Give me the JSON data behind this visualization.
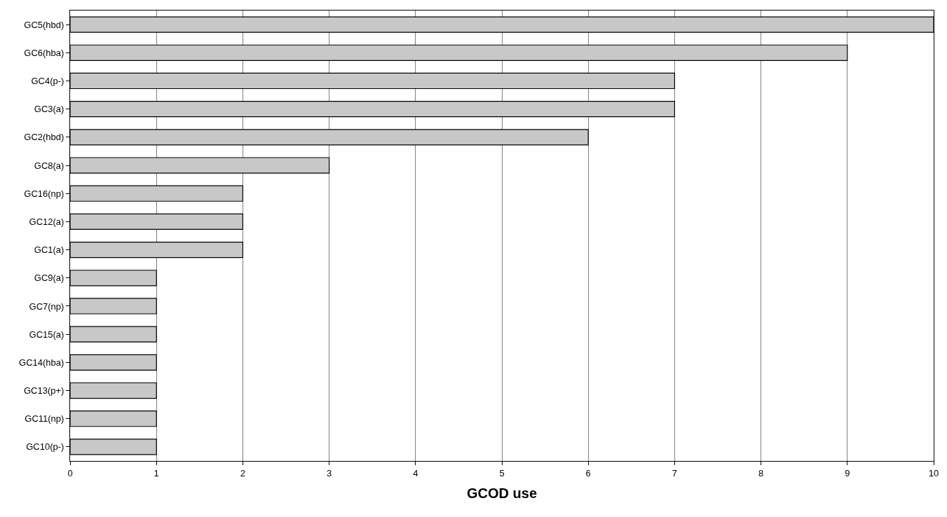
{
  "chart_data": {
    "type": "bar",
    "orientation": "horizontal",
    "xlabel": "GCOD use",
    "categories": [
      "GC5(hbd)",
      "GC6(hba)",
      "GC4(p-)",
      "GC3(a)",
      "GC2(hbd)",
      "GC8(a)",
      "GC16(np)",
      "GC12(a)",
      "GC1(a)",
      "GC9(a)",
      "GC7(np)",
      "GC15(a)",
      "GC14(hba)",
      "GC13(p+)",
      "GC11(np)",
      "GC10(p-)"
    ],
    "values": [
      10,
      9,
      7,
      7,
      6,
      3,
      2,
      2,
      2,
      1,
      1,
      1,
      1,
      1,
      1,
      1
    ],
    "color": "#c8c8c8",
    "xlim": [
      0,
      10
    ],
    "xticks": [
      0,
      1,
      2,
      3,
      4,
      5,
      6,
      7,
      8,
      9,
      10
    ],
    "grid": "x"
  }
}
